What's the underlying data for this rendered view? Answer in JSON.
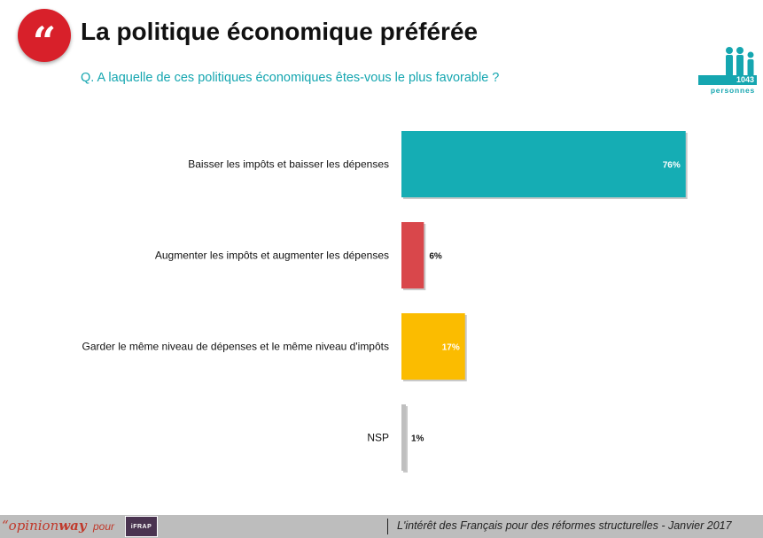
{
  "header": {
    "quote_glyph": "“",
    "title": "La politique économique préférée",
    "question": "Q. A laquelle de ces politiques économiques êtes-vous le plus favorable ?"
  },
  "sample": {
    "count": "1043",
    "unit": "personnes",
    "icon": "people-icon"
  },
  "chart_data": {
    "type": "bar",
    "orientation": "horizontal",
    "categories": [
      "Baisser les impôts et baisser les dépenses",
      "Augmenter les impôts et augmenter les dépenses",
      "Garder le même niveau de dépenses et le même niveau d'impôts",
      "NSP"
    ],
    "values": [
      76,
      6,
      17,
      1
    ],
    "labels": [
      "76%",
      "6%",
      "17%",
      "1%"
    ],
    "colors": [
      "#15adb4",
      "#d9474b",
      "#fbbc00",
      "#bfbfbf"
    ],
    "xlim": [
      0,
      100
    ],
    "grid": false
  },
  "footer": {
    "logo_quote": "“",
    "logo_light": "opinion",
    "logo_bold": "way",
    "pour": "pour",
    "partner": "iFRAP",
    "tagline": "L'intérêt des Français pour des réformes structurelles - Janvier 2017"
  }
}
